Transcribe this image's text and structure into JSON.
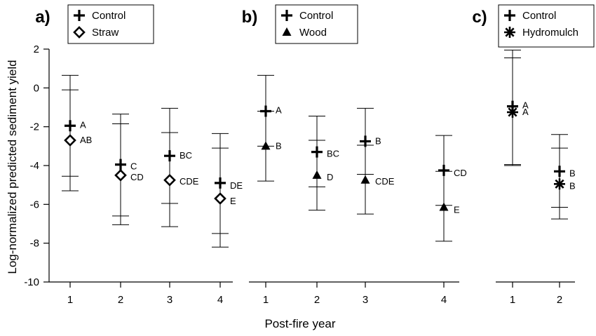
{
  "figure": {
    "ylabel": "Log-normalized predicted sediment yield",
    "xlabel": "Post-fire year"
  },
  "chart_data": [
    {
      "type": "scatter",
      "panel": "a)",
      "ylim": [
        -10,
        2
      ],
      "yticks": [
        -10,
        -8,
        -6,
        -4,
        -2,
        0,
        2
      ],
      "categories": [
        "1",
        "2",
        "3",
        "4"
      ],
      "series": [
        {
          "name": "Control",
          "marker": "plus",
          "points": [
            {
              "x": "1",
              "y": -1.95,
              "lo": -4.55,
              "hi": -0.1,
              "label": "A"
            },
            {
              "x": "2",
              "y": -3.95,
              "lo": -6.6,
              "hi": -1.85,
              "label": "C"
            },
            {
              "x": "3",
              "y": -3.5,
              "lo": -5.95,
              "hi": -2.3,
              "label": "BC"
            },
            {
              "x": "4",
              "y": -4.9,
              "lo": -7.5,
              "hi": -3.1,
              "label": "DE"
            }
          ]
        },
        {
          "name": "Straw",
          "marker": "diamond",
          "points": [
            {
              "x": "1",
              "y": -2.7,
              "lo": -5.3,
              "hi": 0.65,
              "label": "AB"
            },
            {
              "x": "2",
              "y": -4.5,
              "lo": -7.05,
              "hi": -1.35,
              "label": "CD"
            },
            {
              "x": "3",
              "y": -4.75,
              "lo": -7.15,
              "hi": -1.05,
              "label": "CDE"
            },
            {
              "x": "4",
              "y": -5.7,
              "lo": -8.2,
              "hi": -2.35,
              "label": "E"
            }
          ]
        }
      ]
    },
    {
      "type": "scatter",
      "panel": "b)",
      "ylim": [
        -10,
        2
      ],
      "categories": [
        "1",
        "2",
        "3",
        "4"
      ],
      "series": [
        {
          "name": "Control",
          "marker": "plus",
          "points": [
            {
              "x": "1",
              "y": -1.2,
              "lo": -3.0,
              "hi": 0.65,
              "label": "A"
            },
            {
              "x": "2",
              "y": -3.3,
              "lo": -5.1,
              "hi": -1.45,
              "label": "BC"
            },
            {
              "x": "3",
              "y": -2.75,
              "lo": -4.45,
              "hi": -1.05,
              "label": "B"
            },
            {
              "x": "4",
              "y": -4.25,
              "lo": -6.05,
              "hi": -2.45,
              "label": "CD"
            }
          ]
        },
        {
          "name": "Wood",
          "marker": "triangle",
          "points": [
            {
              "x": "1",
              "y": -3.0,
              "lo": -4.8,
              "hi": -1.2,
              "label": "B"
            },
            {
              "x": "2",
              "y": -4.5,
              "lo": -6.3,
              "hi": -2.7,
              "label": "D"
            },
            {
              "x": "3",
              "y": -4.75,
              "lo": -6.5,
              "hi": -2.95,
              "label": "CDE"
            },
            {
              "x": "4",
              "y": -6.15,
              "lo": -7.9,
              "hi": -4.3,
              "label": "E"
            }
          ]
        }
      ]
    },
    {
      "type": "scatter",
      "panel": "c)",
      "ylim": [
        -10,
        2
      ],
      "categories": [
        "1",
        "2"
      ],
      "series": [
        {
          "name": "Control",
          "marker": "plus",
          "points": [
            {
              "x": "1",
              "y": -0.95,
              "lo": -3.95,
              "hi": 1.55,
              "label": "A"
            },
            {
              "x": "2",
              "y": -4.3,
              "lo": -6.15,
              "hi": -2.4,
              "label": "B"
            }
          ]
        },
        {
          "name": "Hydromulch",
          "marker": "star",
          "points": [
            {
              "x": "1",
              "y": -1.25,
              "lo": -4.0,
              "hi": 1.95,
              "label": "A"
            },
            {
              "x": "2",
              "y": -4.95,
              "lo": -6.75,
              "hi": -3.1,
              "label": "B"
            }
          ]
        }
      ]
    }
  ]
}
